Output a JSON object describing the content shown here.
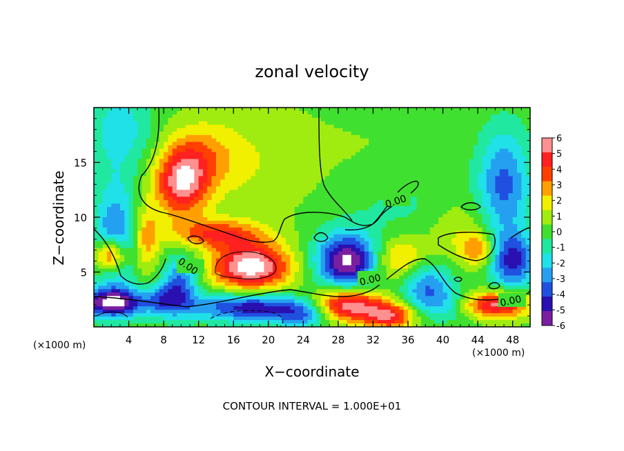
{
  "chart_data": {
    "type": "heatmap",
    "title": "zonal velocity",
    "xlabel": "X−coordinate",
    "ylabel": "Z−coordinate",
    "x_unit_left": "(×1000 m)",
    "x_unit_right": "(×1000 m)",
    "xlim": [
      0,
      50
    ],
    "ylim": [
      0,
      20
    ],
    "x_ticks": [
      4,
      8,
      12,
      16,
      20,
      24,
      28,
      32,
      36,
      40,
      44,
      48
    ],
    "y_ticks": [
      5,
      10,
      15
    ],
    "colorbar_ticks": [
      6,
      5,
      4,
      3,
      2,
      1,
      0,
      -1,
      -2,
      -3,
      -4,
      -5,
      -6
    ],
    "colorbar_range": [
      -6,
      6
    ],
    "colors": [
      "#7a1fa0",
      "#2a10b0",
      "#2050e0",
      "#25a0f0",
      "#20e0e8",
      "#20e8a0",
      "#40e030",
      "#a0ec10",
      "#f0f000",
      "#ffa000",
      "#ff4000",
      "#ff2020",
      "#ff9090"
    ],
    "contour_labels": [
      "0.00",
      "0.00",
      "0.00",
      "0.00"
    ],
    "footnote": "CONTOUR INTERVAL = 1.000E+01",
    "features": [
      {
        "x": 3,
        "z": 18,
        "v": -2.2,
        "rx": 4,
        "rz": 4
      },
      {
        "x": 2.5,
        "z": 8,
        "v": -4,
        "rx": 2.5,
        "rz": 5
      },
      {
        "x": 10,
        "z": 13,
        "v": 5.5,
        "rx": 3,
        "rz": 3
      },
      {
        "x": 12,
        "z": 15.5,
        "v": 2.5,
        "rx": 4,
        "rz": 3
      },
      {
        "x": 18,
        "z": 15,
        "v": 1.2,
        "rx": 7,
        "rz": 5
      },
      {
        "x": 14,
        "z": 8.5,
        "v": 4,
        "rx": 5,
        "rz": 1.3
      },
      {
        "x": 18,
        "z": 5.5,
        "v": 7,
        "rx": 4.5,
        "rz": 2.2
      },
      {
        "x": 29,
        "z": 6,
        "v": -7,
        "rx": 3.5,
        "rz": 2.5
      },
      {
        "x": 29,
        "z": 2,
        "v": 6.5,
        "rx": 4,
        "rz": 1.5
      },
      {
        "x": 18,
        "z": 1.8,
        "v": -5.5,
        "rx": 7,
        "rz": 1.3
      },
      {
        "x": 2,
        "z": 2.2,
        "v": -6.5,
        "rx": 4,
        "rz": 1.3
      },
      {
        "x": 2,
        "z": 6.5,
        "v": 6,
        "rx": 1.8,
        "rz": 1.5
      },
      {
        "x": 35,
        "z": 6,
        "v": 3,
        "rx": 3,
        "rz": 2
      },
      {
        "x": 38,
        "z": 4,
        "v": -3.5,
        "rx": 3,
        "rz": 2
      },
      {
        "x": 47,
        "z": 13,
        "v": -4,
        "rx": 3,
        "rz": 5
      },
      {
        "x": 48,
        "z": 6,
        "v": -5,
        "rx": 2.5,
        "rz": 2.5
      },
      {
        "x": 46,
        "z": 2,
        "v": 6,
        "rx": 4,
        "rz": 1.2
      },
      {
        "x": 10,
        "z": 4,
        "v": -4,
        "rx": 2,
        "rz": 2.5
      },
      {
        "x": 42,
        "z": 9,
        "v": 1.5,
        "rx": 4,
        "rz": 3
      },
      {
        "x": 44,
        "z": 7,
        "v": 3,
        "rx": 2,
        "rz": 1.5
      },
      {
        "x": 24,
        "z": 1,
        "v": -3,
        "rx": 3,
        "rz": 1.2
      },
      {
        "x": 34,
        "z": 1,
        "v": 5,
        "rx": 3,
        "rz": 1.2
      },
      {
        "x": 40,
        "z": 2,
        "v": -2.5,
        "rx": 4,
        "rz": 1.5
      },
      {
        "x": 8,
        "z": 2.5,
        "v": -3,
        "rx": 2,
        "rz": 1.5
      },
      {
        "x": 6,
        "z": 8,
        "v": 3,
        "rx": 1.5,
        "rz": 3
      },
      {
        "x": 36,
        "z": 11,
        "v": -1,
        "rx": 8,
        "rz": 3
      },
      {
        "x": 32,
        "z": 16,
        "v": 0.3,
        "rx": 8,
        "rz": 5
      }
    ]
  }
}
